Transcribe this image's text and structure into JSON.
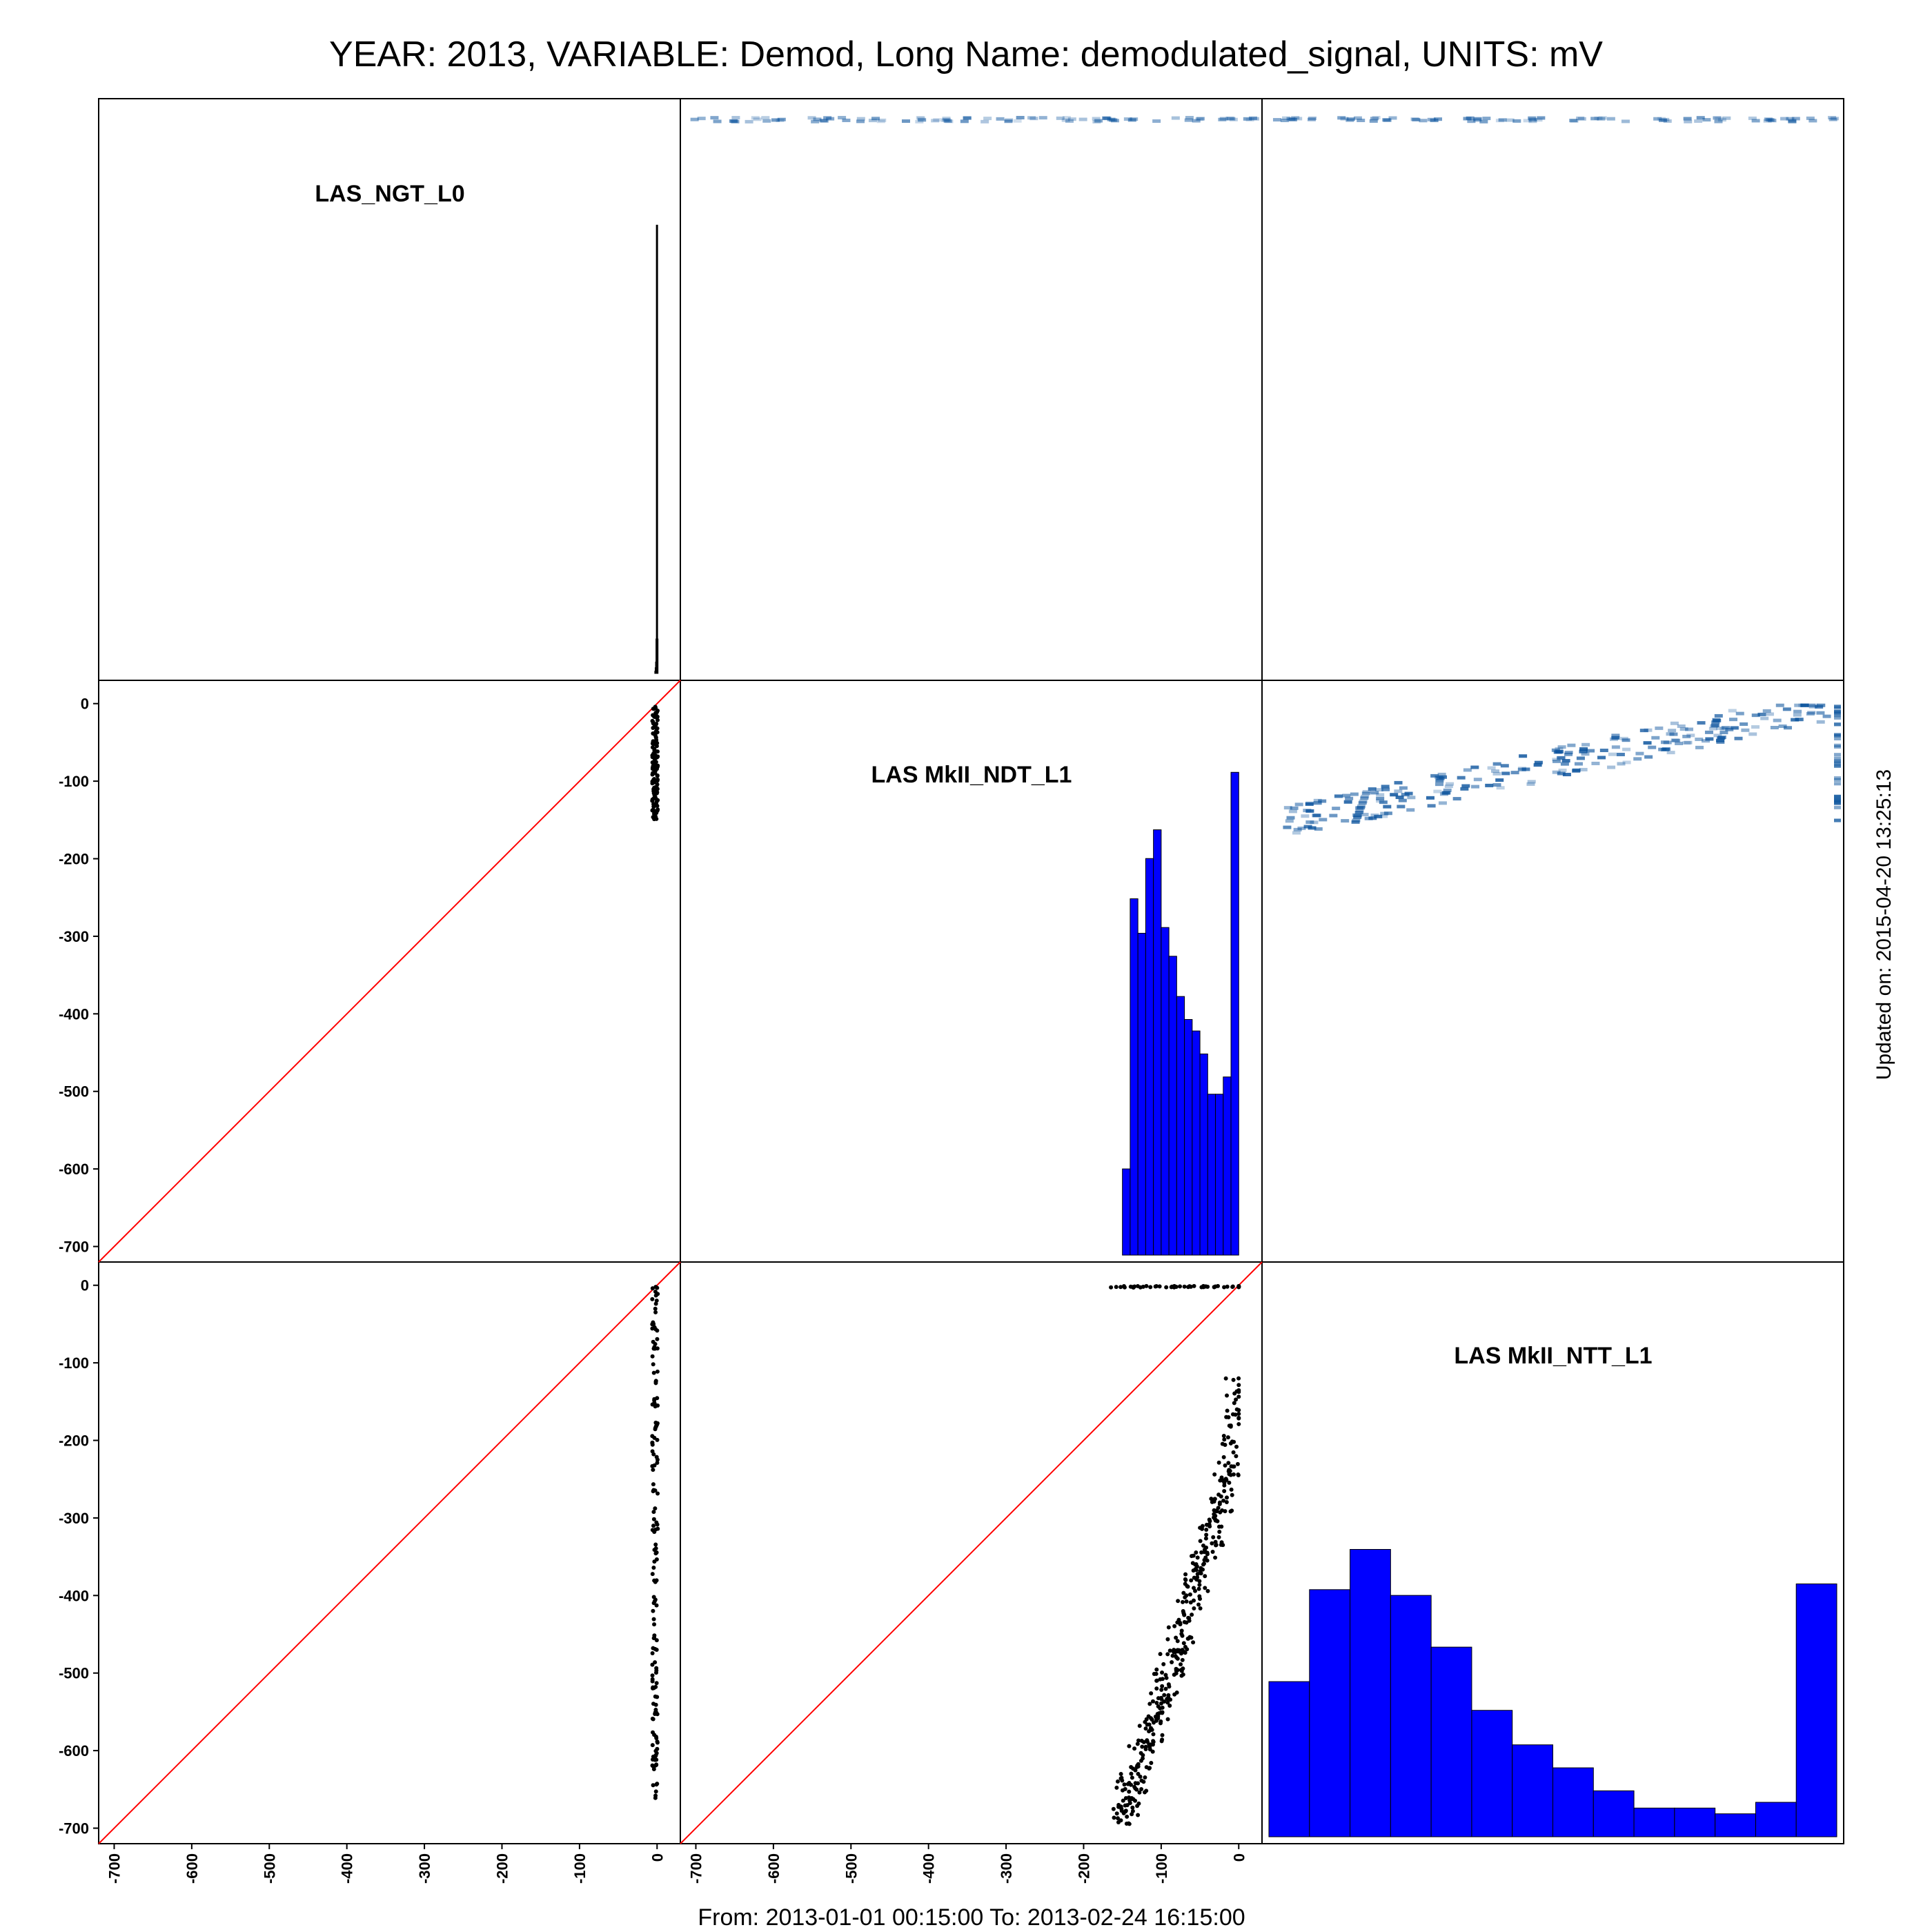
{
  "title": "YEAR: 2013, VARIABLE: Demod, Long Name: demodulated_signal, UNITS: mV",
  "footer": "From: 2013-01-01 00:15:00 To: 2013-02-24 16:15:00",
  "updated": "Updated on: 2015-04-20 13:25:13",
  "colors": {
    "frame": "#000000",
    "bar_fill": "#0000ff",
    "diagonal": "#ff0000",
    "points": "#000000",
    "density": "#08519c"
  },
  "chart_data": {
    "type": "scatter-matrix",
    "variables": [
      "LAS_NGT_L0",
      "LAS MkII_NDT_L1",
      "LAS MkII_NTT_L1"
    ],
    "axis_range": [
      -720,
      30
    ],
    "tick_values": [
      -700,
      -600,
      -500,
      -400,
      -300,
      -200,
      -100,
      0
    ],
    "tick_labels": [
      "-700",
      "-600",
      "-500",
      "-400",
      "-300",
      "-200",
      "-100",
      "0"
    ],
    "identity_line": true,
    "histograms": {
      "LAS_NGT_L0": {
        "bin_width": 0.5,
        "bins": [
          [
            -3.0,
            0.004
          ],
          [
            -2.5,
            0.01
          ],
          [
            -2.0,
            0.02
          ],
          [
            -1.5,
            0.06
          ],
          [
            -1.0,
            0.78
          ],
          [
            -0.5,
            0.06
          ]
        ]
      },
      "LAS MkII_NDT_L1": {
        "bin_width": 10,
        "bins": [
          [
            -160,
            0.0
          ],
          [
            -150,
            0.15
          ],
          [
            -140,
            0.62
          ],
          [
            -130,
            0.56
          ],
          [
            -120,
            0.69
          ],
          [
            -110,
            0.74
          ],
          [
            -100,
            0.57
          ],
          [
            -90,
            0.52
          ],
          [
            -80,
            0.45
          ],
          [
            -70,
            0.41
          ],
          [
            -60,
            0.39
          ],
          [
            -50,
            0.35
          ],
          [
            -40,
            0.28
          ],
          [
            -30,
            0.28
          ],
          [
            -20,
            0.31
          ],
          [
            -10,
            0.84
          ]
        ]
      },
      "LAS MkII_NTT_L1": {
        "bin_width": 50,
        "bins": [
          [
            -700,
            0.27
          ],
          [
            -650,
            0.43
          ],
          [
            -600,
            0.5
          ],
          [
            -550,
            0.42
          ],
          [
            -500,
            0.33
          ],
          [
            -450,
            0.22
          ],
          [
            -400,
            0.16
          ],
          [
            -350,
            0.12
          ],
          [
            -300,
            0.08
          ],
          [
            -250,
            0.05
          ],
          [
            -200,
            0.05
          ],
          [
            -150,
            0.04
          ],
          [
            -100,
            0.06
          ],
          [
            -50,
            0.44
          ]
        ]
      }
    },
    "scatter_ngt_vs_ndt": {
      "x_range": [
        -2,
        0
      ],
      "y_range": [
        -150,
        0
      ]
    },
    "scatter_ngt_vs_ntt": {
      "x_range": [
        -2,
        0
      ],
      "y_range": [
        -680,
        0
      ]
    },
    "scatter_ndt_vs_ntt": {
      "points": [
        [
          -150,
          -670
        ],
        [
          -140,
          -650
        ],
        [
          -130,
          -620
        ],
        [
          -120,
          -590
        ],
        [
          -110,
          -560
        ],
        [
          -100,
          -530
        ],
        [
          -90,
          -500
        ],
        [
          -80,
          -470
        ],
        [
          -70,
          -440
        ],
        [
          -60,
          -400
        ],
        [
          -50,
          -370
        ],
        [
          -40,
          -330
        ],
        [
          -30,
          -300
        ],
        [
          -20,
          -260
        ],
        [
          -10,
          -220
        ],
        [
          -5,
          -150
        ],
        [
          -150,
          -2
        ],
        [
          -120,
          -2
        ],
        [
          -90,
          -2
        ],
        [
          -60,
          -2
        ],
        [
          -30,
          -2
        ],
        [
          0,
          -2
        ]
      ]
    }
  }
}
